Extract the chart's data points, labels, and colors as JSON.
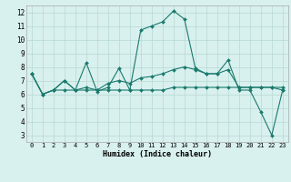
{
  "xlabel": "Humidex (Indice chaleur)",
  "background_color": "#d8f0ee",
  "grid_color": "#b8d8d4",
  "line_color": "#1a7a6e",
  "xlim": [
    -0.5,
    23.5
  ],
  "ylim": [
    2.5,
    12.5
  ],
  "xticks": [
    0,
    1,
    2,
    3,
    4,
    5,
    6,
    7,
    8,
    9,
    10,
    11,
    12,
    13,
    14,
    15,
    16,
    17,
    18,
    19,
    20,
    21,
    22,
    23
  ],
  "yticks": [
    3,
    4,
    5,
    6,
    7,
    8,
    9,
    10,
    11,
    12
  ],
  "series": [
    [
      7.5,
      6.0,
      6.3,
      7.0,
      6.3,
      8.3,
      6.2,
      6.5,
      7.9,
      6.3,
      10.7,
      11.0,
      11.3,
      12.1,
      11.5,
      7.9,
      7.5,
      7.5,
      8.5,
      6.3,
      6.3,
      4.7,
      3.0,
      6.3
    ],
    [
      7.5,
      6.0,
      6.3,
      7.0,
      6.3,
      6.5,
      6.3,
      6.8,
      7.0,
      6.8,
      7.2,
      7.3,
      7.5,
      7.8,
      8.0,
      7.8,
      7.5,
      7.5,
      7.8,
      6.5,
      6.5,
      6.5,
      6.5,
      6.3
    ],
    [
      7.5,
      6.0,
      6.3,
      6.3,
      6.3,
      6.3,
      6.3,
      6.3,
      6.3,
      6.3,
      6.3,
      6.3,
      6.3,
      6.5,
      6.5,
      6.5,
      6.5,
      6.5,
      6.5,
      6.5,
      6.5,
      6.5,
      6.5,
      6.5
    ]
  ],
  "xlabel_fontsize": 6,
  "tick_fontsize": 5,
  "marker_size": 2.0
}
